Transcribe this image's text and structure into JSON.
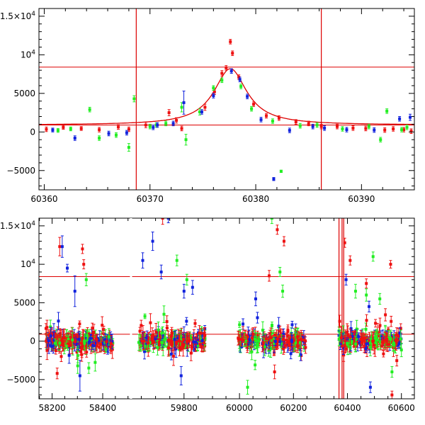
{
  "chart_data": [
    {
      "type": "scatter",
      "title": "",
      "xlabel": "",
      "ylabel": "",
      "xlim": [
        60359.5,
        60395
      ],
      "ylim": [
        -7500,
        16000
      ],
      "x_ticks": [
        60360,
        60370,
        60380,
        60390
      ],
      "x_tick_labels": [
        "60360",
        "60370",
        "60380",
        "60390"
      ],
      "y_ticks": [
        -5000,
        0,
        5000,
        10000,
        15000
      ],
      "y_tick_labels": [
        {
          "base": "−5000",
          "sup": ""
        },
        {
          "base": "0",
          "sup": ""
        },
        {
          "base": "5000",
          "sup": ""
        },
        {
          "base": "10",
          "sup": "4"
        },
        {
          "base": "1.5×10",
          "sup": "4"
        }
      ],
      "grid": false,
      "hlines": [
        8400,
        900
      ],
      "vlines": [
        60368.7,
        60386.2
      ],
      "colors": {
        "red": "#ee1111",
        "green": "#22ee22",
        "blue": "#1122dd",
        "line": "#dd0000"
      },
      "model_curve": {
        "type": "lorentzian",
        "peak_x": 60377.6,
        "baseline": 900,
        "amplitude": 7300,
        "half_width": 1.9
      },
      "series": [
        {
          "color": "red",
          "points": [
            [
              60360.2,
              350,
              300
            ],
            [
              60361.8,
              600,
              250
            ],
            [
              60363.5,
              450,
              250
            ],
            [
              60365.2,
              300,
              300
            ],
            [
              60367.0,
              650,
              300
            ],
            [
              60369.6,
              900,
              350
            ],
            [
              60371.8,
              2500,
              400
            ],
            [
              60372.5,
              1500,
              350
            ],
            [
              60375.2,
              3200,
              400
            ],
            [
              60376.1,
              5200,
              350
            ],
            [
              60376.8,
              7600,
              350
            ],
            [
              60377.2,
              8300,
              300
            ],
            [
              60377.6,
              11700,
              300
            ],
            [
              60377.8,
              10200,
              300
            ],
            [
              60378.4,
              7100,
              300
            ],
            [
              60379.8,
              3600,
              300
            ],
            [
              60381.0,
              2100,
              300
            ],
            [
              60382.2,
              1800,
              300
            ],
            [
              60383.8,
              1300,
              300
            ],
            [
              60385.0,
              1100,
              300
            ],
            [
              60386.2,
              700,
              300
            ],
            [
              60387.7,
              700,
              300
            ],
            [
              60389.2,
              500,
              300
            ],
            [
              60390.4,
              450,
              300
            ],
            [
              60392.2,
              250,
              300
            ],
            [
              60393.0,
              400,
              300
            ],
            [
              60394.0,
              300,
              300
            ],
            [
              60394.7,
              100,
              300
            ],
            [
              60373.0,
              450,
              300
            ],
            [
              60368.0,
              350,
              300
            ]
          ]
        },
        {
          "color": "green",
          "points": [
            [
              60361.3,
              200,
              250
            ],
            [
              60362.5,
              400,
              250
            ],
            [
              60364.3,
              2900,
              300
            ],
            [
              60365.2,
              -800,
              300
            ],
            [
              60366.8,
              -400,
              300
            ],
            [
              60368.0,
              -2000,
              500
            ],
            [
              60368.5,
              4300,
              400
            ],
            [
              60370.6,
              900,
              300
            ],
            [
              60371.5,
              1100,
              300
            ],
            [
              60373.0,
              3200,
              600
            ],
            [
              60373.4,
              -1000,
              700
            ],
            [
              60374.7,
              2600,
              400
            ],
            [
              60376.0,
              5700,
              300
            ],
            [
              60376.8,
              6700,
              300
            ],
            [
              60378.6,
              5900,
              300
            ],
            [
              60379.6,
              3000,
              300
            ],
            [
              60381.6,
              1400,
              300
            ],
            [
              60382.4,
              -5100,
              150
            ],
            [
              60384.2,
              800,
              300
            ],
            [
              60385.8,
              900,
              300
            ],
            [
              60388.2,
              400,
              300
            ],
            [
              60390.7,
              700,
              300
            ],
            [
              60391.8,
              -1000,
              300
            ],
            [
              60392.4,
              2700,
              300
            ],
            [
              60393.8,
              300,
              300
            ],
            [
              60394.3,
              600,
              300
            ],
            [
              60370.0,
              700,
              300
            ]
          ]
        },
        {
          "color": "blue",
          "points": [
            [
              60360.8,
              250,
              250
            ],
            [
              60362.9,
              -800,
              300
            ],
            [
              60366.1,
              -200,
              300
            ],
            [
              60367.8,
              -100,
              300
            ],
            [
              60370.3,
              600,
              300
            ],
            [
              60370.7,
              900,
              300
            ],
            [
              60373.2,
              3800,
              1500
            ],
            [
              60374.9,
              2600,
              300
            ],
            [
              60376.0,
              4700,
              300
            ],
            [
              60377.7,
              7900,
              300
            ],
            [
              60378.5,
              6800,
              300
            ],
            [
              60379.2,
              4600,
              300
            ],
            [
              60380.5,
              1600,
              300
            ],
            [
              60381.7,
              -6100,
              200
            ],
            [
              60383.2,
              200,
              300
            ],
            [
              60385.4,
              700,
              300
            ],
            [
              60386.5,
              500,
              300
            ],
            [
              60388.6,
              300,
              300
            ],
            [
              60391.2,
              250,
              300
            ],
            [
              60393.6,
              1700,
              300
            ],
            [
              60394.6,
              1900,
              400
            ],
            [
              60372.2,
              1100,
              300
            ]
          ]
        }
      ]
    },
    {
      "type": "scatter",
      "title": "",
      "xlabel": "",
      "ylabel": "",
      "ylim": [
        -7500,
        16000
      ],
      "segments": [
        {
          "xlim": [
            58148,
            58512
          ],
          "ticks": [
            58200,
            58400
          ],
          "tick_labels": [
            "58200",
            "58400"
          ]
        },
        {
          "xlim": [
            59614,
            59900
          ],
          "ticks": [
            59800
          ],
          "tick_labels": [
            "59800"
          ]
        },
        {
          "xlim": [
            59900,
            60648
          ],
          "ticks": [
            60000,
            60200,
            60400,
            60600
          ],
          "tick_labels": [
            "60000",
            "60200",
            "60400",
            "60600"
          ]
        }
      ],
      "y_ticks": [
        -5000,
        0,
        5000,
        10000,
        15000
      ],
      "y_tick_labels": [
        {
          "base": "−5000",
          "sup": ""
        },
        {
          "base": "0",
          "sup": ""
        },
        {
          "base": "5000",
          "sup": ""
        },
        {
          "base": "10",
          "sup": "4"
        },
        {
          "base": "1.5×10",
          "sup": "4"
        }
      ],
      "grid": false,
      "hlines": [
        8400,
        900
      ],
      "vlines": [
        60368.7,
        60380,
        60386.2
      ],
      "colors": {
        "red": "#ee1111",
        "green": "#22ee22",
        "blue": "#1122dd",
        "line": "#dd0000"
      },
      "clusters": [
        {
          "x_range": [
            58175,
            58440
          ],
          "n": 260
        },
        {
          "x_range": [
            59640,
            59875
          ],
          "n": 240
        },
        {
          "x_range": [
            59995,
            60245
          ],
          "n": 240
        },
        {
          "x_range": [
            60368,
            60600
          ],
          "n": 210
        }
      ],
      "outliers": [
        {
          "color": "red",
          "points": [
            [
              58230,
              12300,
              1200
            ],
            [
              58320,
              12000,
              600
            ],
            [
              58325,
              10000,
              600
            ],
            [
              59725,
              16000,
              800
            ],
            [
              60110,
              8500,
              700
            ],
            [
              60140,
              14500,
              600
            ],
            [
              60165,
              13000,
              600
            ],
            [
              60390,
              12800,
              600
            ],
            [
              60410,
              10500,
              600
            ],
            [
              60470,
              7500,
              600
            ],
            [
              60560,
              10000,
              500
            ],
            [
              60565,
              -7000,
              500
            ],
            [
              60130,
              -4000,
              900
            ],
            [
              58220,
              -4200,
              700
            ]
          ]
        },
        {
          "color": "blue",
          "points": [
            [
              58240,
              12300,
              1400
            ],
            [
              58260,
              9500,
              500
            ],
            [
              58290,
              6500,
              2000
            ],
            [
              58310,
              -4500,
              2000
            ],
            [
              59655,
              10500,
              1000
            ],
            [
              59690,
              13000,
              1200
            ],
            [
              59745,
              16000,
              600
            ],
            [
              59720,
              9000,
              900
            ],
            [
              59800,
              6500,
              900
            ],
            [
              59830,
              7000,
              900
            ],
            [
              60060,
              5500,
              900
            ],
            [
              60395,
              8000,
              700
            ],
            [
              60480,
              4500,
              700
            ],
            [
              60485,
              -6000,
              700
            ],
            [
              59790,
              -4500,
              1200
            ]
          ]
        },
        {
          "color": "green",
          "points": [
            [
              58335,
              8000,
              800
            ],
            [
              58345,
              -3500,
              700
            ],
            [
              59775,
              10500,
              700
            ],
            [
              59810,
              8000,
              700
            ],
            [
              60120,
              16000,
              700
            ],
            [
              60150,
              9000,
              600
            ],
            [
              60160,
              6500,
              800
            ],
            [
              60430,
              6500,
              900
            ],
            [
              60470,
              6000,
              800
            ],
            [
              60495,
              11000,
              600
            ],
            [
              60520,
              5500,
              700
            ],
            [
              60565,
              -4000,
              700
            ],
            [
              60030,
              -6000,
              900
            ]
          ]
        }
      ]
    }
  ]
}
